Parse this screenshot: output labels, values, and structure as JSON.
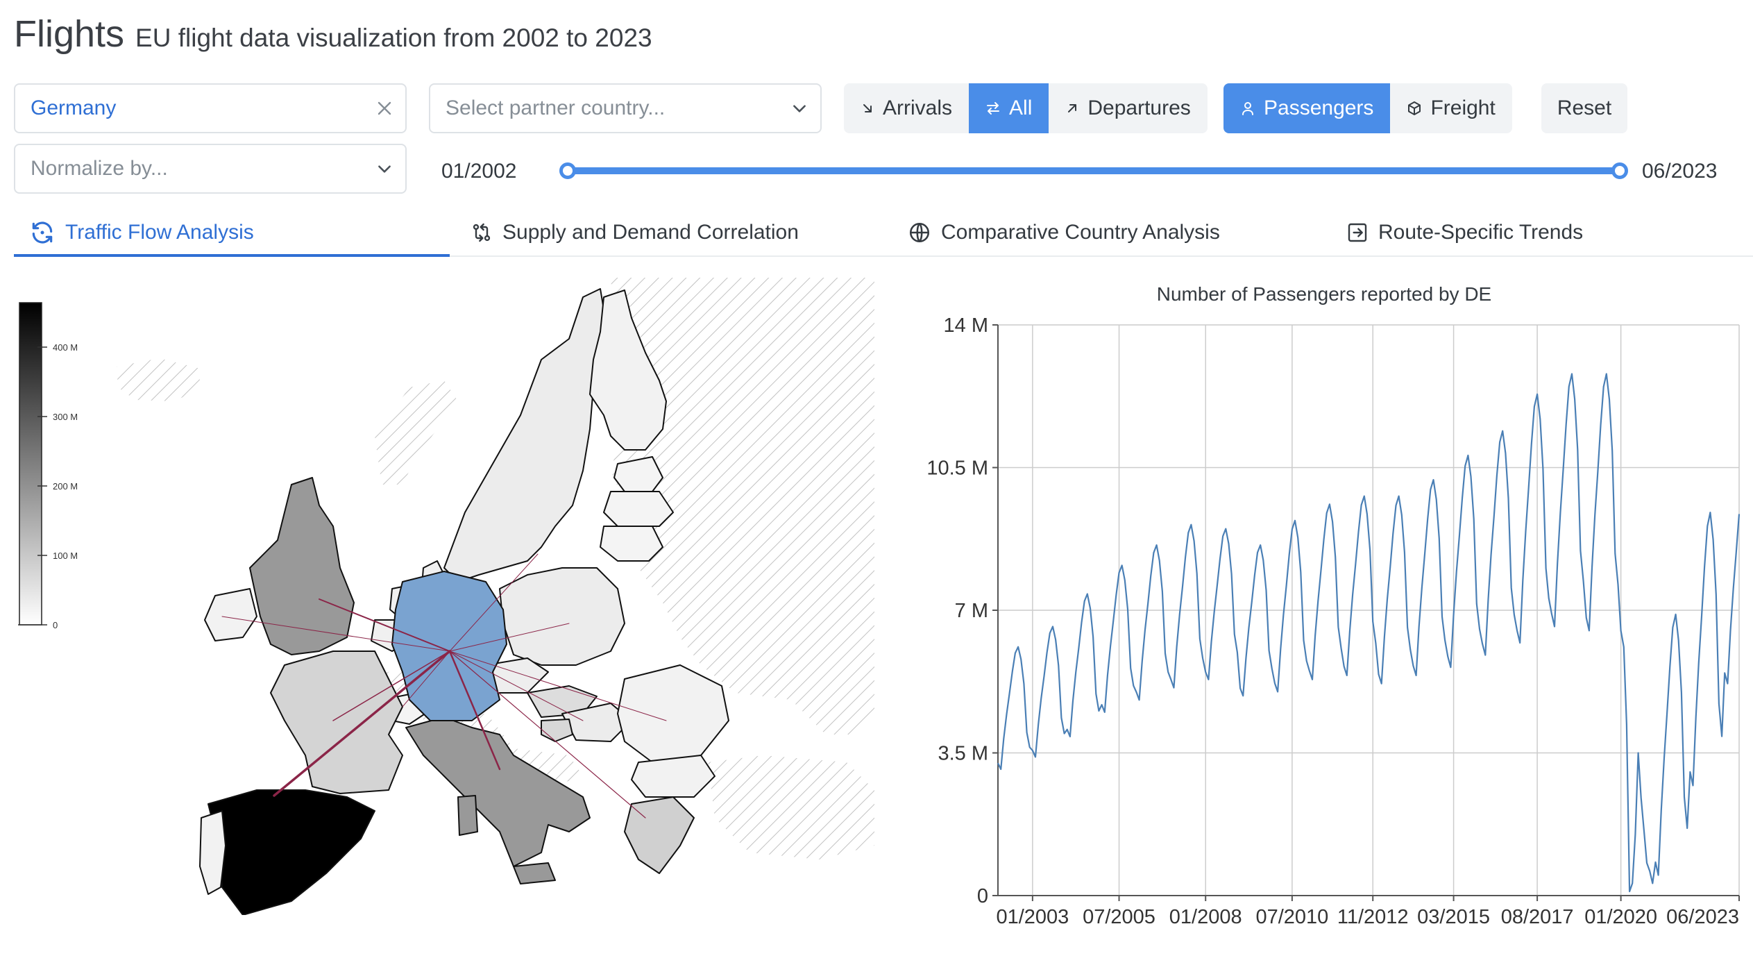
{
  "header": {
    "title": "Flights",
    "subtitle": "EU flight data visualization from 2002 to 2023"
  },
  "controls": {
    "country": {
      "value": "Germany",
      "clear_icon": "close-icon"
    },
    "partner": {
      "placeholder": "Select partner country...",
      "icon": "chevron-down-icon"
    },
    "normalize": {
      "placeholder": "Normalize by...",
      "icon": "chevron-down-icon"
    },
    "direction": {
      "options": [
        {
          "label": "Arrivals",
          "icon": "arrow-down-right-icon",
          "selected": false
        },
        {
          "label": "All",
          "icon": "arrows-exchange-icon",
          "selected": true
        },
        {
          "label": "Departures",
          "icon": "arrow-up-right-icon",
          "selected": false
        }
      ]
    },
    "metric": {
      "options": [
        {
          "label": "Passengers",
          "icon": "user-icon",
          "selected": true
        },
        {
          "label": "Freight",
          "icon": "box-icon",
          "selected": false
        }
      ]
    },
    "reset_label": "Reset",
    "date_range": {
      "start": "01/2002",
      "end": "06/2023",
      "start_fraction": 0,
      "end_fraction": 1
    }
  },
  "tabs": [
    {
      "label": "Traffic Flow Analysis",
      "icon": "refresh-dot-icon",
      "active": true
    },
    {
      "label": "Supply and Demand Correlation",
      "icon": "git-compare-icon",
      "active": false
    },
    {
      "label": "Comparative Country Analysis",
      "icon": "globe-icon",
      "active": false
    },
    {
      "label": "Route-Specific Trends",
      "icon": "box-arrow-right-icon",
      "active": false
    }
  ],
  "map": {
    "legend_ticks": [
      "0",
      "100 M",
      "200 M",
      "300 M",
      "400 M"
    ],
    "legend_max": 460,
    "selected_country": "Germany",
    "colors": {
      "selected": "#7aa3d0",
      "flow_line": "#8b2548",
      "no_data": "#c8c8c8"
    }
  },
  "chart_data": {
    "type": "line",
    "title": "Number of Passengers reported by DE",
    "ylim": [
      0,
      14
    ],
    "y_ticks": [
      "0",
      "3.5 M",
      "7 M",
      "10.5 M",
      "14 M"
    ],
    "y_tick_values": [
      0,
      3.5,
      7,
      10.5,
      14
    ],
    "x_ticks": [
      "01/2003",
      "07/2005",
      "01/2008",
      "07/2010",
      "11/2012",
      "03/2015",
      "08/2017",
      "01/2020",
      "06/2023"
    ],
    "x_tick_dates": [
      "2003-01",
      "2005-07",
      "2008-01",
      "2010-07",
      "2012-11",
      "2015-03",
      "2017-08",
      "2020-01",
      "2023-06"
    ],
    "grid": true,
    "color": "#4a7fb5",
    "series": [
      {
        "annual": [
          {
            "year": 2002,
            "winter_low": 3.1,
            "summer_peak": 6.1
          },
          {
            "year": 2003,
            "winter_low": 3.4,
            "summer_peak": 6.6
          },
          {
            "year": 2004,
            "winter_low": 3.9,
            "summer_peak": 7.4
          },
          {
            "year": 2005,
            "winter_low": 4.5,
            "summer_peak": 8.1
          },
          {
            "year": 2006,
            "winter_low": 4.8,
            "summer_peak": 8.6
          },
          {
            "year": 2007,
            "winter_low": 5.1,
            "summer_peak": 9.1
          },
          {
            "year": 2008,
            "winter_low": 5.3,
            "summer_peak": 9.0
          },
          {
            "year": 2009,
            "winter_low": 4.9,
            "summer_peak": 8.6
          },
          {
            "year": 2010,
            "winter_low": 5.0,
            "summer_peak": 9.2
          },
          {
            "year": 2011,
            "winter_low": 5.3,
            "summer_peak": 9.6
          },
          {
            "year": 2012,
            "winter_low": 5.4,
            "summer_peak": 9.8
          },
          {
            "year": 2013,
            "winter_low": 5.2,
            "summer_peak": 9.8
          },
          {
            "year": 2014,
            "winter_low": 5.4,
            "summer_peak": 10.2
          },
          {
            "year": 2015,
            "winter_low": 5.6,
            "summer_peak": 10.8
          },
          {
            "year": 2016,
            "winter_low": 5.9,
            "summer_peak": 11.4
          },
          {
            "year": 2017,
            "winter_low": 6.2,
            "summer_peak": 12.3
          },
          {
            "year": 2018,
            "winter_low": 6.6,
            "summer_peak": 12.8
          },
          {
            "year": 2019,
            "winter_low": 6.5,
            "summer_peak": 12.8
          },
          {
            "year": 2020,
            "winter_low": 0.1,
            "summer_peak": 3.5
          },
          {
            "year": 2021,
            "winter_low": 0.5,
            "summer_peak": 6.9
          },
          {
            "year": 2022,
            "winter_low": 2.7,
            "summer_peak": 9.4
          },
          {
            "year": 2023,
            "winter_low": 5.2,
            "summer_peak": 10.4
          }
        ]
      }
    ]
  }
}
